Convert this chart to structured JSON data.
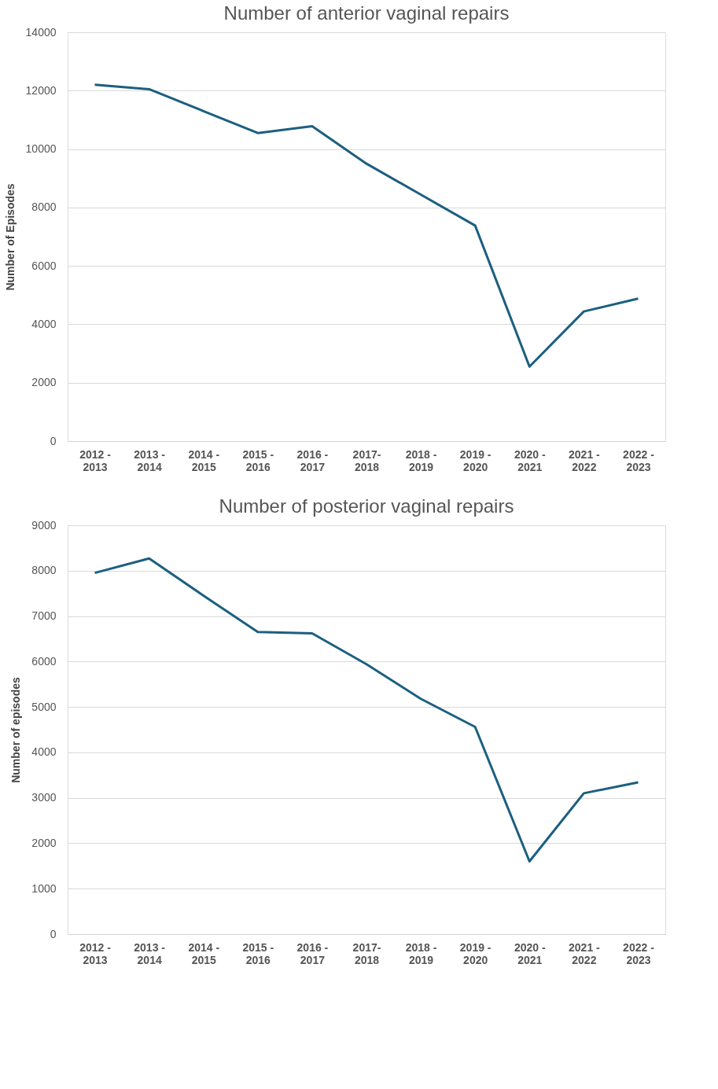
{
  "chart_data": [
    {
      "type": "line",
      "title": "Number of anterior vaginal repairs",
      "ylabel": "Number of Episodes",
      "categories": [
        "2012 - 2013",
        "2013 - 2014",
        "2014 - 2015",
        "2015 - 2016",
        "2016 - 2017",
        "2017- 2018",
        "2018 - 2019",
        "2019 - 2020",
        "2020 - 2021",
        "2021 - 2022",
        "2022 - 2023"
      ],
      "series": [
        {
          "color": "#1c5f80",
          "values": [
            12200,
            12050,
            11300,
            10550,
            10780,
            9500,
            8440,
            7380,
            2550,
            4440,
            4880
          ]
        }
      ],
      "ylim": [
        0,
        14000
      ],
      "yticks": [
        0,
        2000,
        4000,
        6000,
        8000,
        10000,
        12000,
        14000
      ],
      "grid": "y",
      "marker": "none",
      "line_style": "solid"
    },
    {
      "type": "line",
      "title": "Number of posterior vaginal repairs",
      "ylabel": "Number of episodes",
      "categories": [
        "2012 - 2013",
        "2013 - 2014",
        "2014 - 2015",
        "2015 - 2016",
        "2016 - 2017",
        "2017- 2018",
        "2018 - 2019",
        "2019 - 2020",
        "2020 - 2021",
        "2021 - 2022",
        "2022 - 2023"
      ],
      "series": [
        {
          "color": "#1c5f80",
          "values": [
            7950,
            8270,
            7450,
            6650,
            6620,
            5940,
            5180,
            4560,
            1600,
            3100,
            3340
          ]
        }
      ],
      "ylim": [
        0,
        9000
      ],
      "yticks": [
        0,
        1000,
        2000,
        3000,
        4000,
        5000,
        6000,
        7000,
        8000,
        9000
      ],
      "grid": "y",
      "marker": "none",
      "line_style": "solid"
    }
  ]
}
